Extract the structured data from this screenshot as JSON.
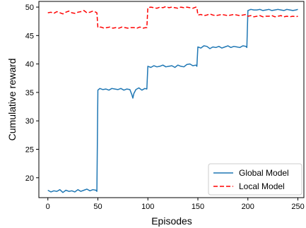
{
  "chart_data": {
    "type": "line",
    "xlabel": "Episodes",
    "ylabel": "Cumulative reward",
    "xlim": [
      -9,
      256
    ],
    "ylim": [
      16.5,
      51
    ],
    "x_ticks": [
      0,
      50,
      100,
      150,
      200,
      250
    ],
    "y_ticks": [
      20,
      25,
      30,
      35,
      40,
      45,
      50
    ],
    "grid": false,
    "legend_position": "bottom-right",
    "series": [
      {
        "name": "Global Model",
        "color": "#1f77b4",
        "style": "solid",
        "x": [
          0,
          3,
          6,
          9,
          12,
          15,
          18,
          21,
          24,
          27,
          30,
          33,
          36,
          39,
          42,
          45,
          48,
          49,
          50,
          52,
          55,
          58,
          61,
          64,
          67,
          70,
          73,
          76,
          79,
          82,
          84,
          85,
          86,
          88,
          91,
          94,
          97,
          99,
          100,
          103,
          106,
          109,
          112,
          115,
          118,
          121,
          124,
          127,
          130,
          133,
          136,
          139,
          142,
          145,
          148,
          149,
          150,
          153,
          156,
          159,
          162,
          165,
          168,
          171,
          174,
          177,
          180,
          183,
          186,
          189,
          192,
          195,
          198,
          199,
          200,
          203,
          206,
          209,
          212,
          215,
          218,
          221,
          224,
          227,
          230,
          233,
          236,
          239,
          242,
          245,
          248,
          250
        ],
        "values": [
          17.8,
          17.5,
          17.7,
          17.6,
          17.9,
          17.4,
          17.8,
          17.6,
          17.7,
          17.5,
          17.9,
          17.6,
          17.8,
          18.0,
          17.7,
          17.9,
          17.8,
          17.6,
          35.4,
          35.7,
          35.5,
          35.6,
          35.4,
          35.7,
          35.6,
          35.5,
          35.7,
          35.4,
          35.6,
          35.5,
          34.6,
          34.0,
          34.8,
          35.5,
          35.8,
          35.4,
          35.7,
          35.6,
          39.6,
          39.4,
          39.7,
          39.5,
          39.6,
          39.8,
          39.5,
          39.6,
          39.7,
          39.4,
          39.8,
          39.6,
          39.5,
          39.9,
          40.0,
          39.7,
          39.8,
          39.6,
          43.0,
          42.8,
          43.2,
          43.1,
          42.7,
          43.0,
          42.9,
          43.1,
          42.8,
          43.0,
          43.2,
          42.9,
          43.1,
          43.0,
          42.9,
          43.2,
          43.1,
          42.9,
          49.4,
          49.6,
          49.5,
          49.5,
          49.6,
          49.4,
          49.5,
          49.6,
          49.4,
          49.5,
          49.6,
          49.5,
          49.4,
          49.6,
          49.5,
          49.4,
          49.5,
          49.6
        ]
      },
      {
        "name": "Local Model",
        "color": "#ff0000",
        "style": "dashed",
        "x": [
          0,
          3,
          6,
          9,
          12,
          15,
          18,
          21,
          24,
          27,
          30,
          33,
          36,
          39,
          42,
          45,
          48,
          49,
          50,
          53,
          56,
          59,
          62,
          65,
          68,
          71,
          74,
          77,
          80,
          83,
          86,
          89,
          92,
          95,
          98,
          99,
          100,
          103,
          106,
          109,
          112,
          115,
          118,
          121,
          124,
          127,
          130,
          133,
          136,
          139,
          142,
          145,
          148,
          149,
          150,
          153,
          156,
          159,
          162,
          165,
          168,
          171,
          174,
          177,
          180,
          183,
          186,
          189,
          192,
          195,
          198,
          199,
          200,
          203,
          206,
          209,
          212,
          215,
          218,
          221,
          224,
          227,
          230,
          233,
          236,
          239,
          242,
          245,
          248,
          250
        ],
        "values": [
          49.0,
          49.1,
          48.9,
          49.2,
          49.0,
          48.8,
          49.1,
          49.3,
          49.0,
          48.9,
          49.1,
          49.2,
          49.4,
          49.0,
          49.1,
          49.3,
          49.1,
          49.0,
          46.4,
          46.5,
          46.3,
          46.4,
          46.5,
          46.3,
          46.4,
          46.3,
          46.5,
          46.4,
          46.3,
          46.4,
          46.4,
          46.3,
          46.5,
          46.3,
          46.4,
          46.4,
          49.9,
          50.0,
          49.9,
          49.8,
          50.0,
          49.9,
          50.1,
          49.9,
          50.0,
          49.9,
          49.8,
          50.0,
          49.9,
          50.0,
          49.9,
          49.8,
          50.0,
          49.9,
          48.6,
          48.7,
          48.5,
          48.6,
          48.8,
          48.6,
          48.5,
          48.6,
          48.7,
          48.6,
          48.5,
          48.6,
          48.7,
          48.6,
          48.5,
          48.6,
          48.7,
          48.6,
          48.4,
          48.5,
          48.3,
          48.4,
          48.5,
          48.3,
          48.4,
          48.4,
          48.5,
          48.3,
          48.4,
          48.5,
          48.3,
          48.4,
          48.3,
          48.4,
          48.3,
          48.4
        ]
      }
    ]
  }
}
